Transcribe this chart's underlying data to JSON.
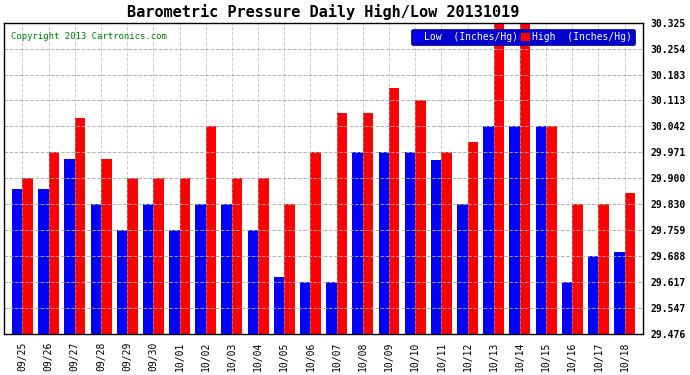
{
  "title": "Barometric Pressure Daily High/Low 20131019",
  "copyright": "Copyright 2013 Cartronics.com",
  "legend_low": "Low  (Inches/Hg)",
  "legend_high": "High  (Inches/Hg)",
  "dates": [
    "09/25",
    "09/26",
    "09/27",
    "09/28",
    "09/29",
    "09/30",
    "10/01",
    "10/02",
    "10/03",
    "10/04",
    "10/05",
    "10/06",
    "10/07",
    "10/08",
    "10/09",
    "10/10",
    "10/11",
    "10/12",
    "10/13",
    "10/14",
    "10/15",
    "10/16",
    "10/17",
    "10/18"
  ],
  "low": [
    29.871,
    29.871,
    29.952,
    29.83,
    29.759,
    29.83,
    29.759,
    29.83,
    29.83,
    29.759,
    29.63,
    29.617,
    29.617,
    29.971,
    29.971,
    29.971,
    29.95,
    29.83,
    30.042,
    30.042,
    30.042,
    29.617,
    29.688,
    29.7
  ],
  "high": [
    29.9,
    29.971,
    30.066,
    29.952,
    29.9,
    29.9,
    29.9,
    30.042,
    29.9,
    29.9,
    29.83,
    29.971,
    30.078,
    30.078,
    30.148,
    30.113,
    29.971,
    30.0,
    30.325,
    30.325,
    30.042,
    29.83,
    29.83,
    29.86
  ],
  "bar_color_low": "#0000ff",
  "bar_color_high": "#ff0000",
  "ylim_min": 29.476,
  "ylim_max": 30.325,
  "yticks": [
    29.476,
    29.547,
    29.617,
    29.688,
    29.759,
    29.83,
    29.9,
    29.971,
    30.042,
    30.113,
    30.183,
    30.254,
    30.325
  ],
  "bg_color": "#ffffff",
  "plot_bg_color": "#ffffff",
  "grid_color": "#aaaaaa",
  "title_fontsize": 11,
  "tick_fontsize": 7,
  "legend_fontsize": 7
}
